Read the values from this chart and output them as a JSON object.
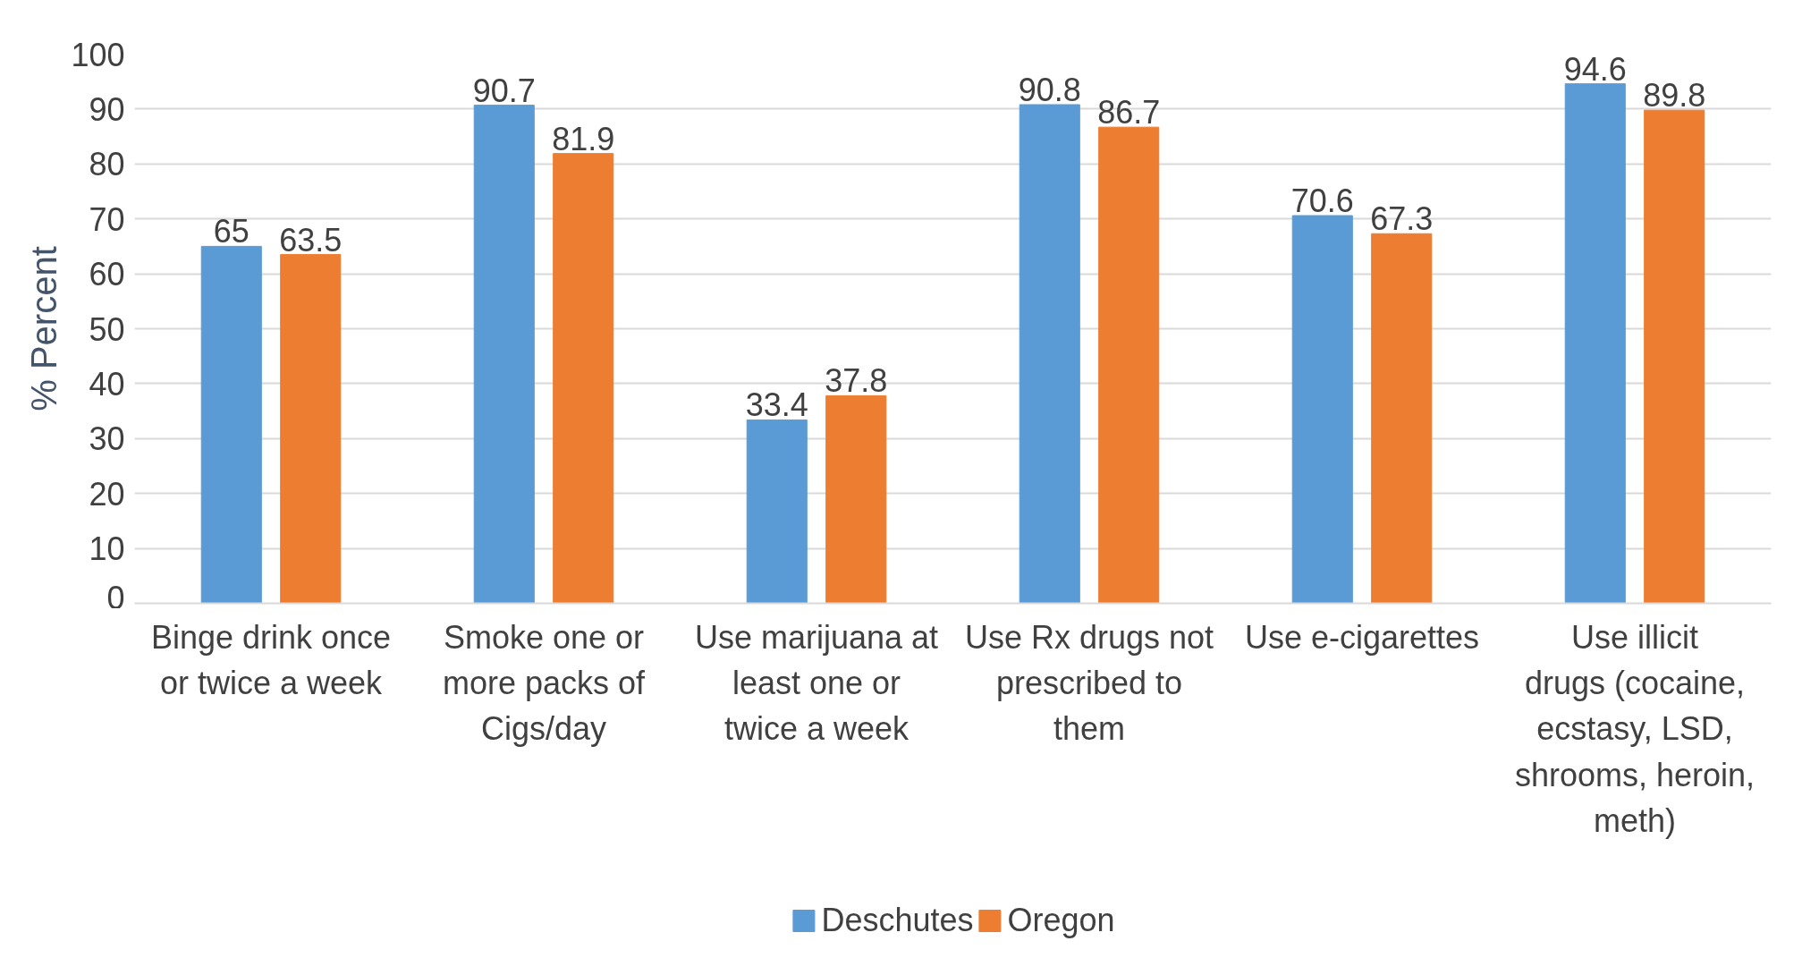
{
  "chart_data": {
    "type": "bar",
    "ylabel": "% Percent",
    "categories": [
      "Binge drink once or twice a week",
      "Smoke one or more packs of Cigs/day",
      "Use marijuana at least one or twice a week",
      "Use Rx drugs not prescribed to them",
      "Use e-cigarettes",
      "Use illicit drugs (cocaine, ecstasy, LSD, shrooms, heroin, meth)"
    ],
    "series": [
      {
        "name": "Deschutes",
        "color": "#5b9bd5",
        "values": [
          65,
          90.7,
          33.4,
          90.8,
          70.6,
          94.6
        ]
      },
      {
        "name": "Oregon",
        "color": "#ed7d31",
        "values": [
          63.5,
          81.9,
          37.8,
          86.7,
          67.3,
          89.8
        ]
      }
    ],
    "ylim": [
      0,
      100
    ],
    "yticks": [
      0,
      10,
      20,
      30,
      40,
      50,
      60,
      70,
      80,
      90,
      100
    ],
    "grid": "y",
    "legend": "bottom",
    "data_labels": true
  }
}
